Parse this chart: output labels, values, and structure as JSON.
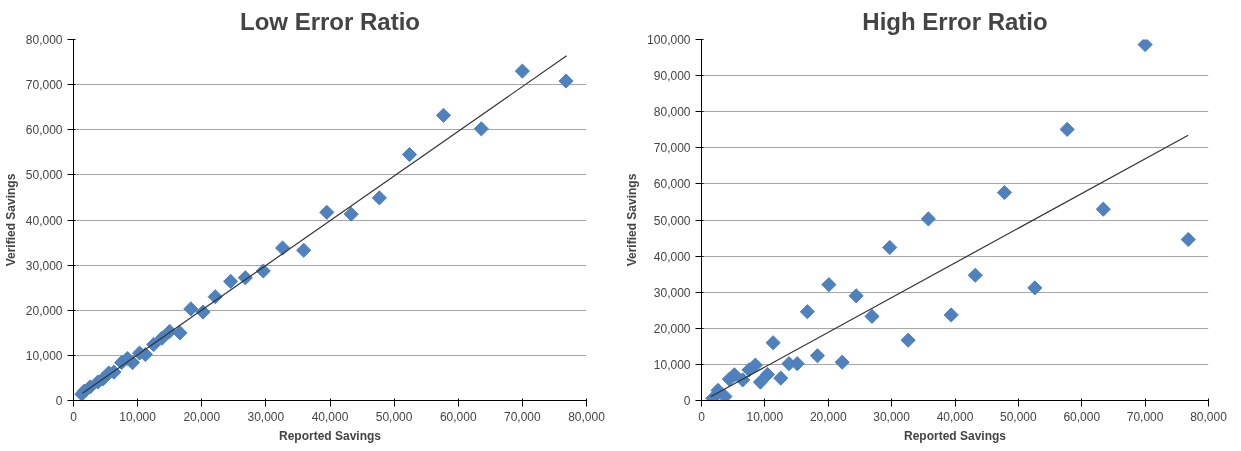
{
  "chart_data": [
    {
      "type": "scatter",
      "title": "Low Error Ratio",
      "xlabel": "Reported Savings",
      "ylabel": "Verified Savings",
      "grid": "y",
      "xlim": [
        0,
        80000
      ],
      "ylim": [
        0,
        80000
      ],
      "xticks": [
        0,
        {
          "value": 10000,
          "label": "10,000"
        },
        {
          "value": 20000,
          "label": "20,000"
        },
        {
          "value": 30000,
          "label": "30,000"
        },
        {
          "value": 40000,
          "label": "40,000"
        },
        {
          "value": 50000,
          "label": "50,000"
        },
        {
          "value": 60000,
          "label": "60,000"
        },
        {
          "value": 70000,
          "label": "70,000"
        },
        {
          "value": 80000,
          "label": "80,000"
        }
      ],
      "yticks": [
        0,
        {
          "value": 10000,
          "label": "10,000"
        },
        {
          "value": 20000,
          "label": "20,000"
        },
        {
          "value": 30000,
          "label": "30,000"
        },
        {
          "value": 40000,
          "label": "40,000"
        },
        {
          "value": 50000,
          "label": "50,000"
        },
        {
          "value": 60000,
          "label": "60,000"
        },
        {
          "value": 70000,
          "label": "70,000"
        },
        {
          "value": 80000,
          "label": "80,000"
        }
      ],
      "series": [
        {
          "marker": "diamond",
          "color": "#4f81bd",
          "x": [
            70000,
            76800,
            57700,
            63600,
            52400,
            47700,
            43300,
            39500,
            35900,
            32600,
            29600,
            26800,
            24500,
            22100,
            20200,
            18300,
            16600,
            15000,
            13800,
            12500,
            11200,
            10300,
            9200,
            8400,
            7500,
            6300,
            5500,
            4600,
            3800,
            2600,
            1700,
            1300
          ],
          "values": [
            73000,
            70800,
            63200,
            60200,
            54500,
            44900,
            41300,
            41700,
            33300,
            33800,
            28700,
            27200,
            26400,
            23000,
            19600,
            20300,
            15000,
            15300,
            13800,
            12400,
            10200,
            10500,
            8400,
            9300,
            8400,
            6300,
            6100,
            4800,
            4100,
            3000,
            2100,
            1400
          ]
        },
        {
          "type": "line",
          "color": "#333333",
          "x": [
            1400,
            76900
          ],
          "values": [
            1600,
            76400
          ]
        }
      ]
    },
    {
      "type": "scatter",
      "title": "High Error Ratio",
      "xlabel": "Reported Savings",
      "ylabel": "Verified Savings",
      "grid": "y",
      "xlim": [
        0,
        80000
      ],
      "ylim": [
        0,
        100000
      ],
      "xticks": [
        0,
        {
          "value": 10000,
          "label": "10,000"
        },
        {
          "value": 20000,
          "label": "20,000"
        },
        {
          "value": 30000,
          "label": "30,000"
        },
        {
          "value": 40000,
          "label": "40,000"
        },
        {
          "value": 50000,
          "label": "50,000"
        },
        {
          "value": 60000,
          "label": "60,000"
        },
        {
          "value": 70000,
          "label": "70,000"
        },
        {
          "value": 80000,
          "label": "80,000"
        }
      ],
      "yticks": [
        0,
        {
          "value": 10000,
          "label": "10,000"
        },
        {
          "value": 20000,
          "label": "20,000"
        },
        {
          "value": 30000,
          "label": "30,000"
        },
        {
          "value": 40000,
          "label": "40,000"
        },
        {
          "value": 50000,
          "label": "50,000"
        },
        {
          "value": 60000,
          "label": "60,000"
        },
        {
          "value": 70000,
          "label": "70,000"
        },
        {
          "value": 80000,
          "label": "80,000"
        },
        {
          "value": 90000,
          "label": "90,000"
        },
        {
          "value": 100000,
          "label": "100,000"
        }
      ],
      "series": [
        {
          "marker": "diamond",
          "color": "#4f81bd",
          "x": [
            70000,
            57700,
            76800,
            63400,
            47800,
            52600,
            43200,
            39400,
            35800,
            32600,
            29700,
            26900,
            24400,
            22200,
            20100,
            18300,
            16700,
            15100,
            13800,
            12500,
            11300,
            10400,
            9300,
            8500,
            7500,
            6500,
            5200,
            4400,
            3700,
            2600,
            1800
          ],
          "values": [
            98600,
            75100,
            44600,
            53000,
            57600,
            31200,
            34700,
            23700,
            50300,
            16700,
            42400,
            23300,
            29000,
            10600,
            32100,
            12400,
            24600,
            10200,
            10200,
            6200,
            16000,
            7200,
            5100,
            9800,
            8500,
            5700,
            7100,
            5900,
            1100,
            2800,
            600
          ]
        },
        {
          "type": "line",
          "color": "#333333",
          "x": [
            1500,
            76800
          ],
          "values": [
            1100,
            73500
          ]
        }
      ]
    }
  ]
}
